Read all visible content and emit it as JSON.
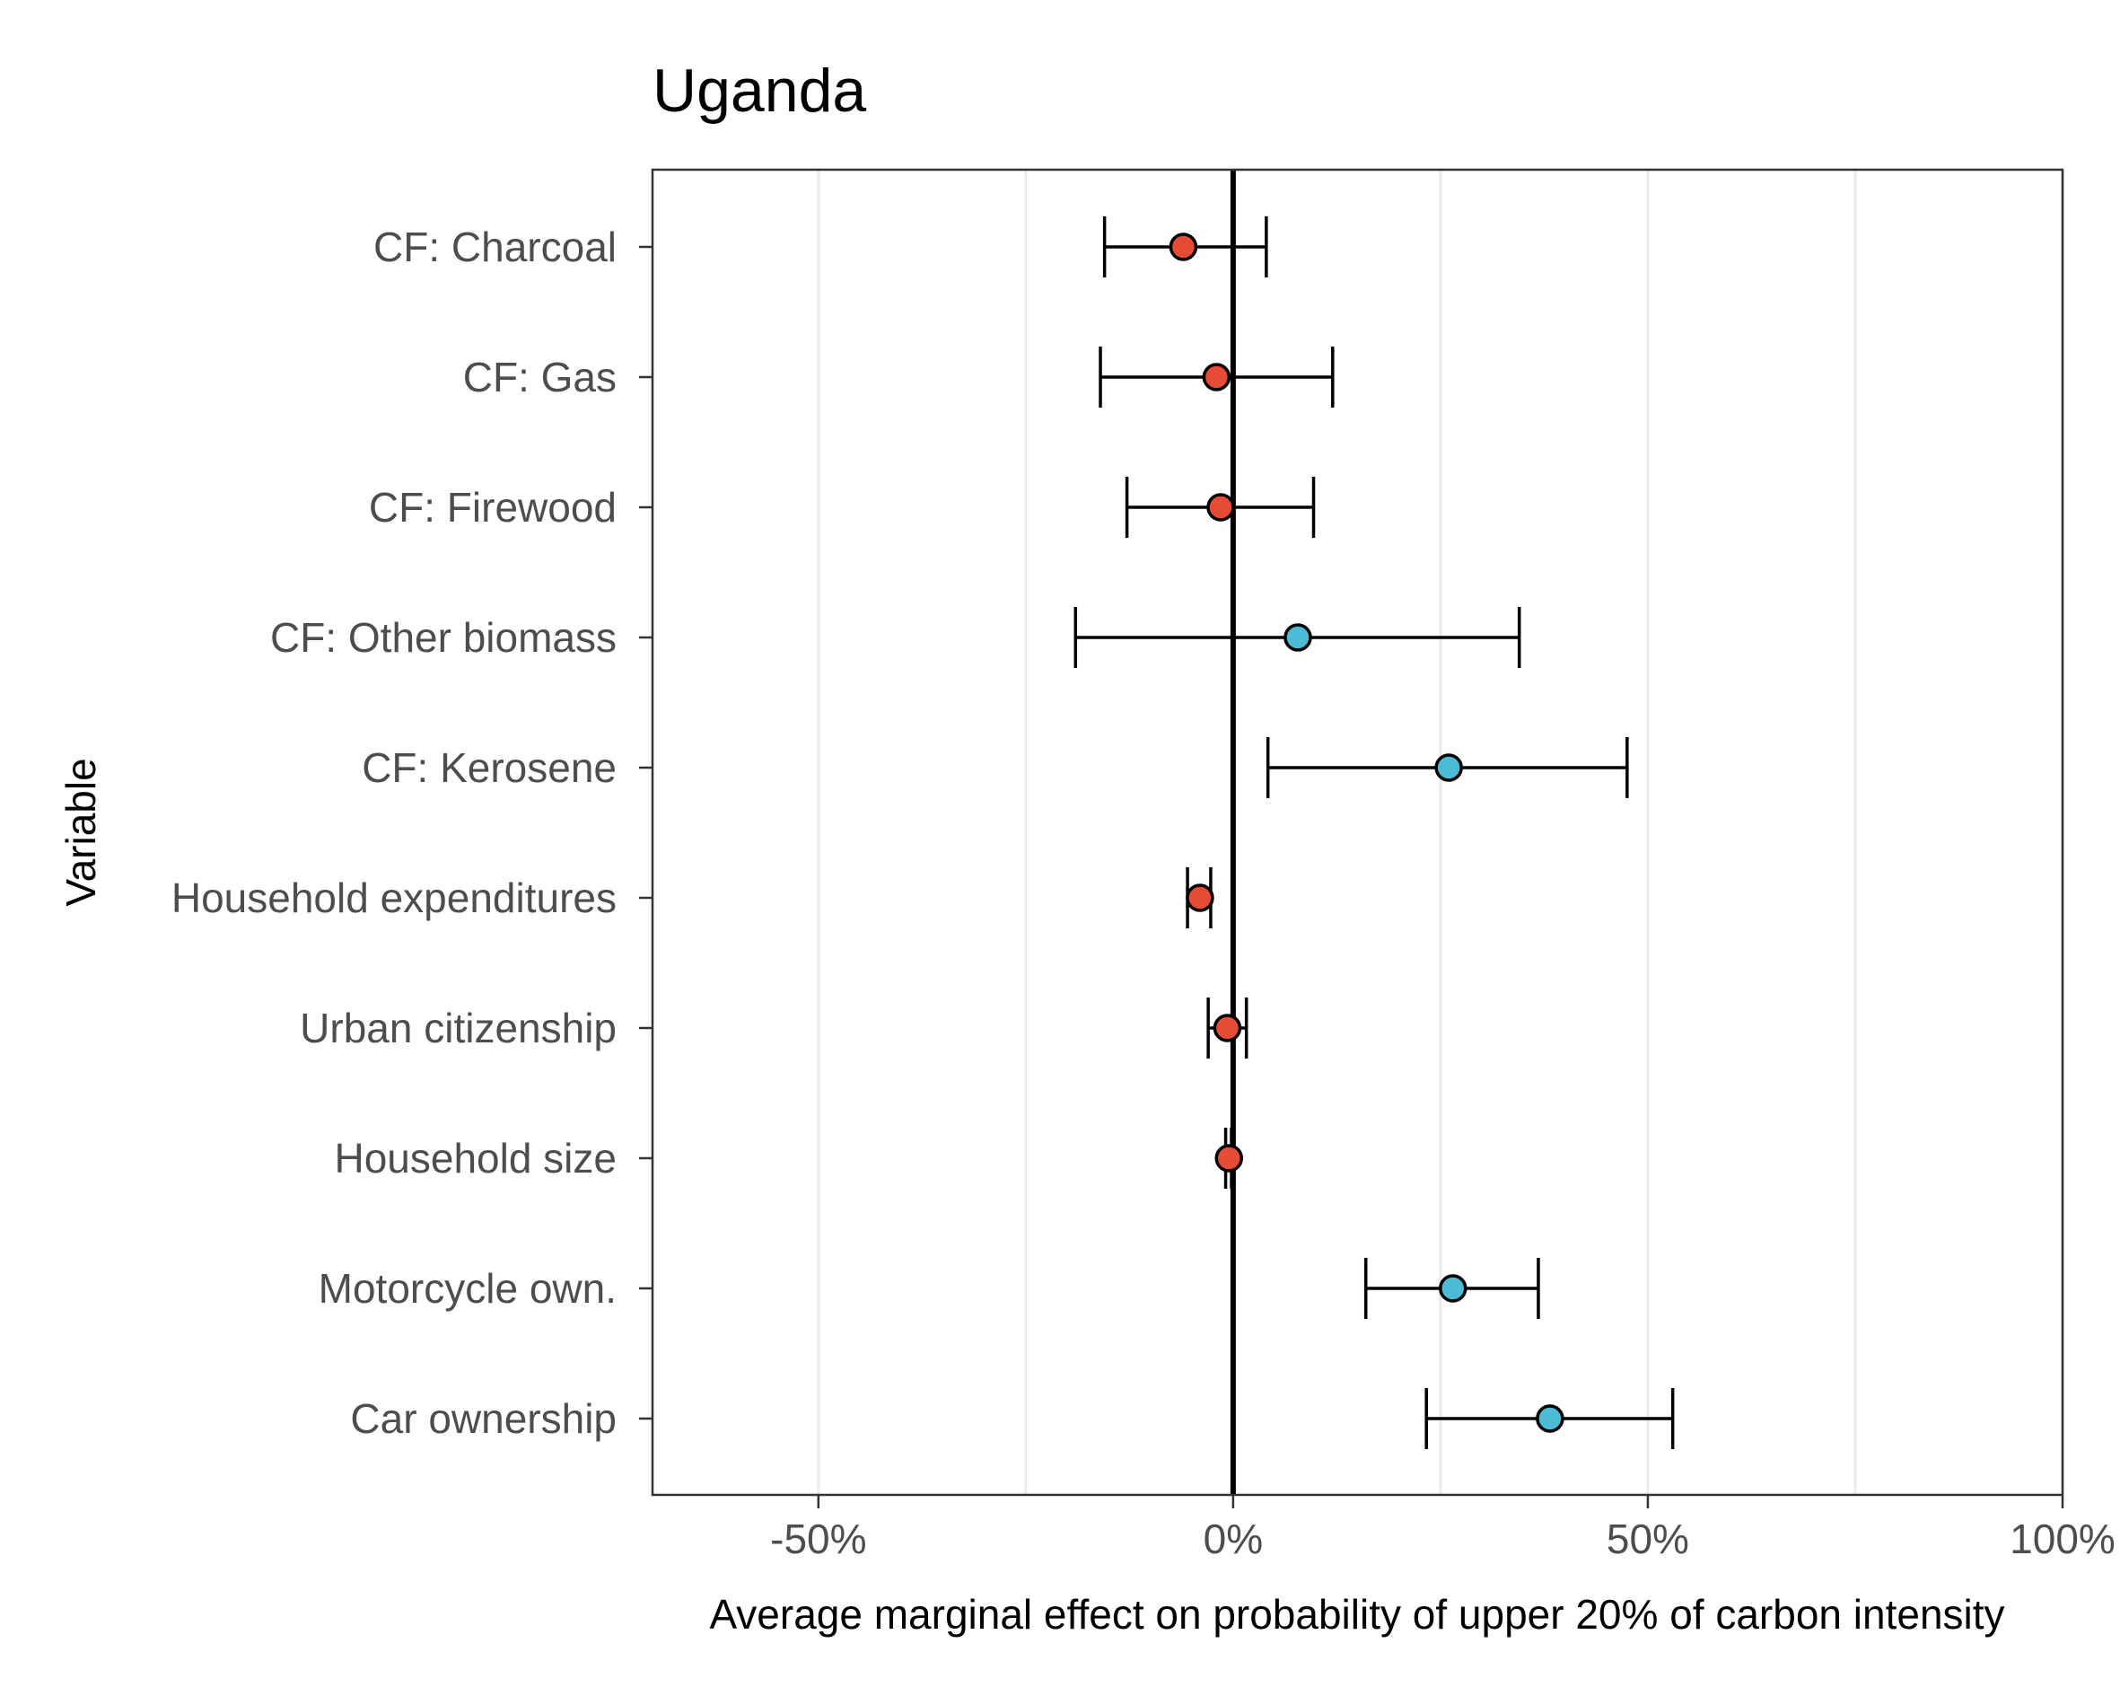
{
  "chart_data": {
    "type": "scatter",
    "subtype": "coefficient-plot-with-error-bars",
    "title": "Uganda",
    "xlabel": "Average marginal effect on probability of upper 20% of carbon intensity",
    "ylabel": "Variable",
    "xlim": [
      -0.7,
      1.0
    ],
    "x_ticks": [
      -0.5,
      0,
      0.5,
      1.0
    ],
    "x_tick_labels": [
      "-50%",
      "0%",
      "50%",
      "100%"
    ],
    "x_minor_gridlines": [
      -0.25,
      0.25,
      0.75
    ],
    "reference_line_x": 0,
    "grid": "vertical",
    "colors": {
      "negative": "#E64B35",
      "positive": "#4DBBD5",
      "frame": "#333333",
      "grid": "#EBEBEB",
      "tick_label": "#4d4d4d"
    },
    "variables": [
      {
        "label": "CF: Charcoal",
        "estimate": -0.06,
        "ci_low": -0.155,
        "ci_high": 0.04,
        "sign": "negative"
      },
      {
        "label": "CF: Gas",
        "estimate": -0.02,
        "ci_low": -0.16,
        "ci_high": 0.12,
        "sign": "negative"
      },
      {
        "label": "CF: Firewood",
        "estimate": -0.015,
        "ci_low": -0.128,
        "ci_high": 0.097,
        "sign": "negative"
      },
      {
        "label": "CF: Other biomass",
        "estimate": 0.078,
        "ci_low": -0.19,
        "ci_high": 0.345,
        "sign": "positive"
      },
      {
        "label": "CF: Kerosene",
        "estimate": 0.26,
        "ci_low": 0.042,
        "ci_high": 0.475,
        "sign": "positive"
      },
      {
        "label": "Household expenditures",
        "estimate": -0.04,
        "ci_low": -0.055,
        "ci_high": -0.027,
        "sign": "negative"
      },
      {
        "label": "Urban citizenship",
        "estimate": -0.007,
        "ci_low": -0.03,
        "ci_high": 0.016,
        "sign": "negative"
      },
      {
        "label": "Household size",
        "estimate": -0.005,
        "ci_low": -0.009,
        "ci_high": -0.002,
        "sign": "negative"
      },
      {
        "label": "Motorcycle own.",
        "estimate": 0.265,
        "ci_low": 0.16,
        "ci_high": 0.368,
        "sign": "positive"
      },
      {
        "label": "Car ownership",
        "estimate": 0.382,
        "ci_low": 0.233,
        "ci_high": 0.53,
        "sign": "positive"
      }
    ]
  }
}
